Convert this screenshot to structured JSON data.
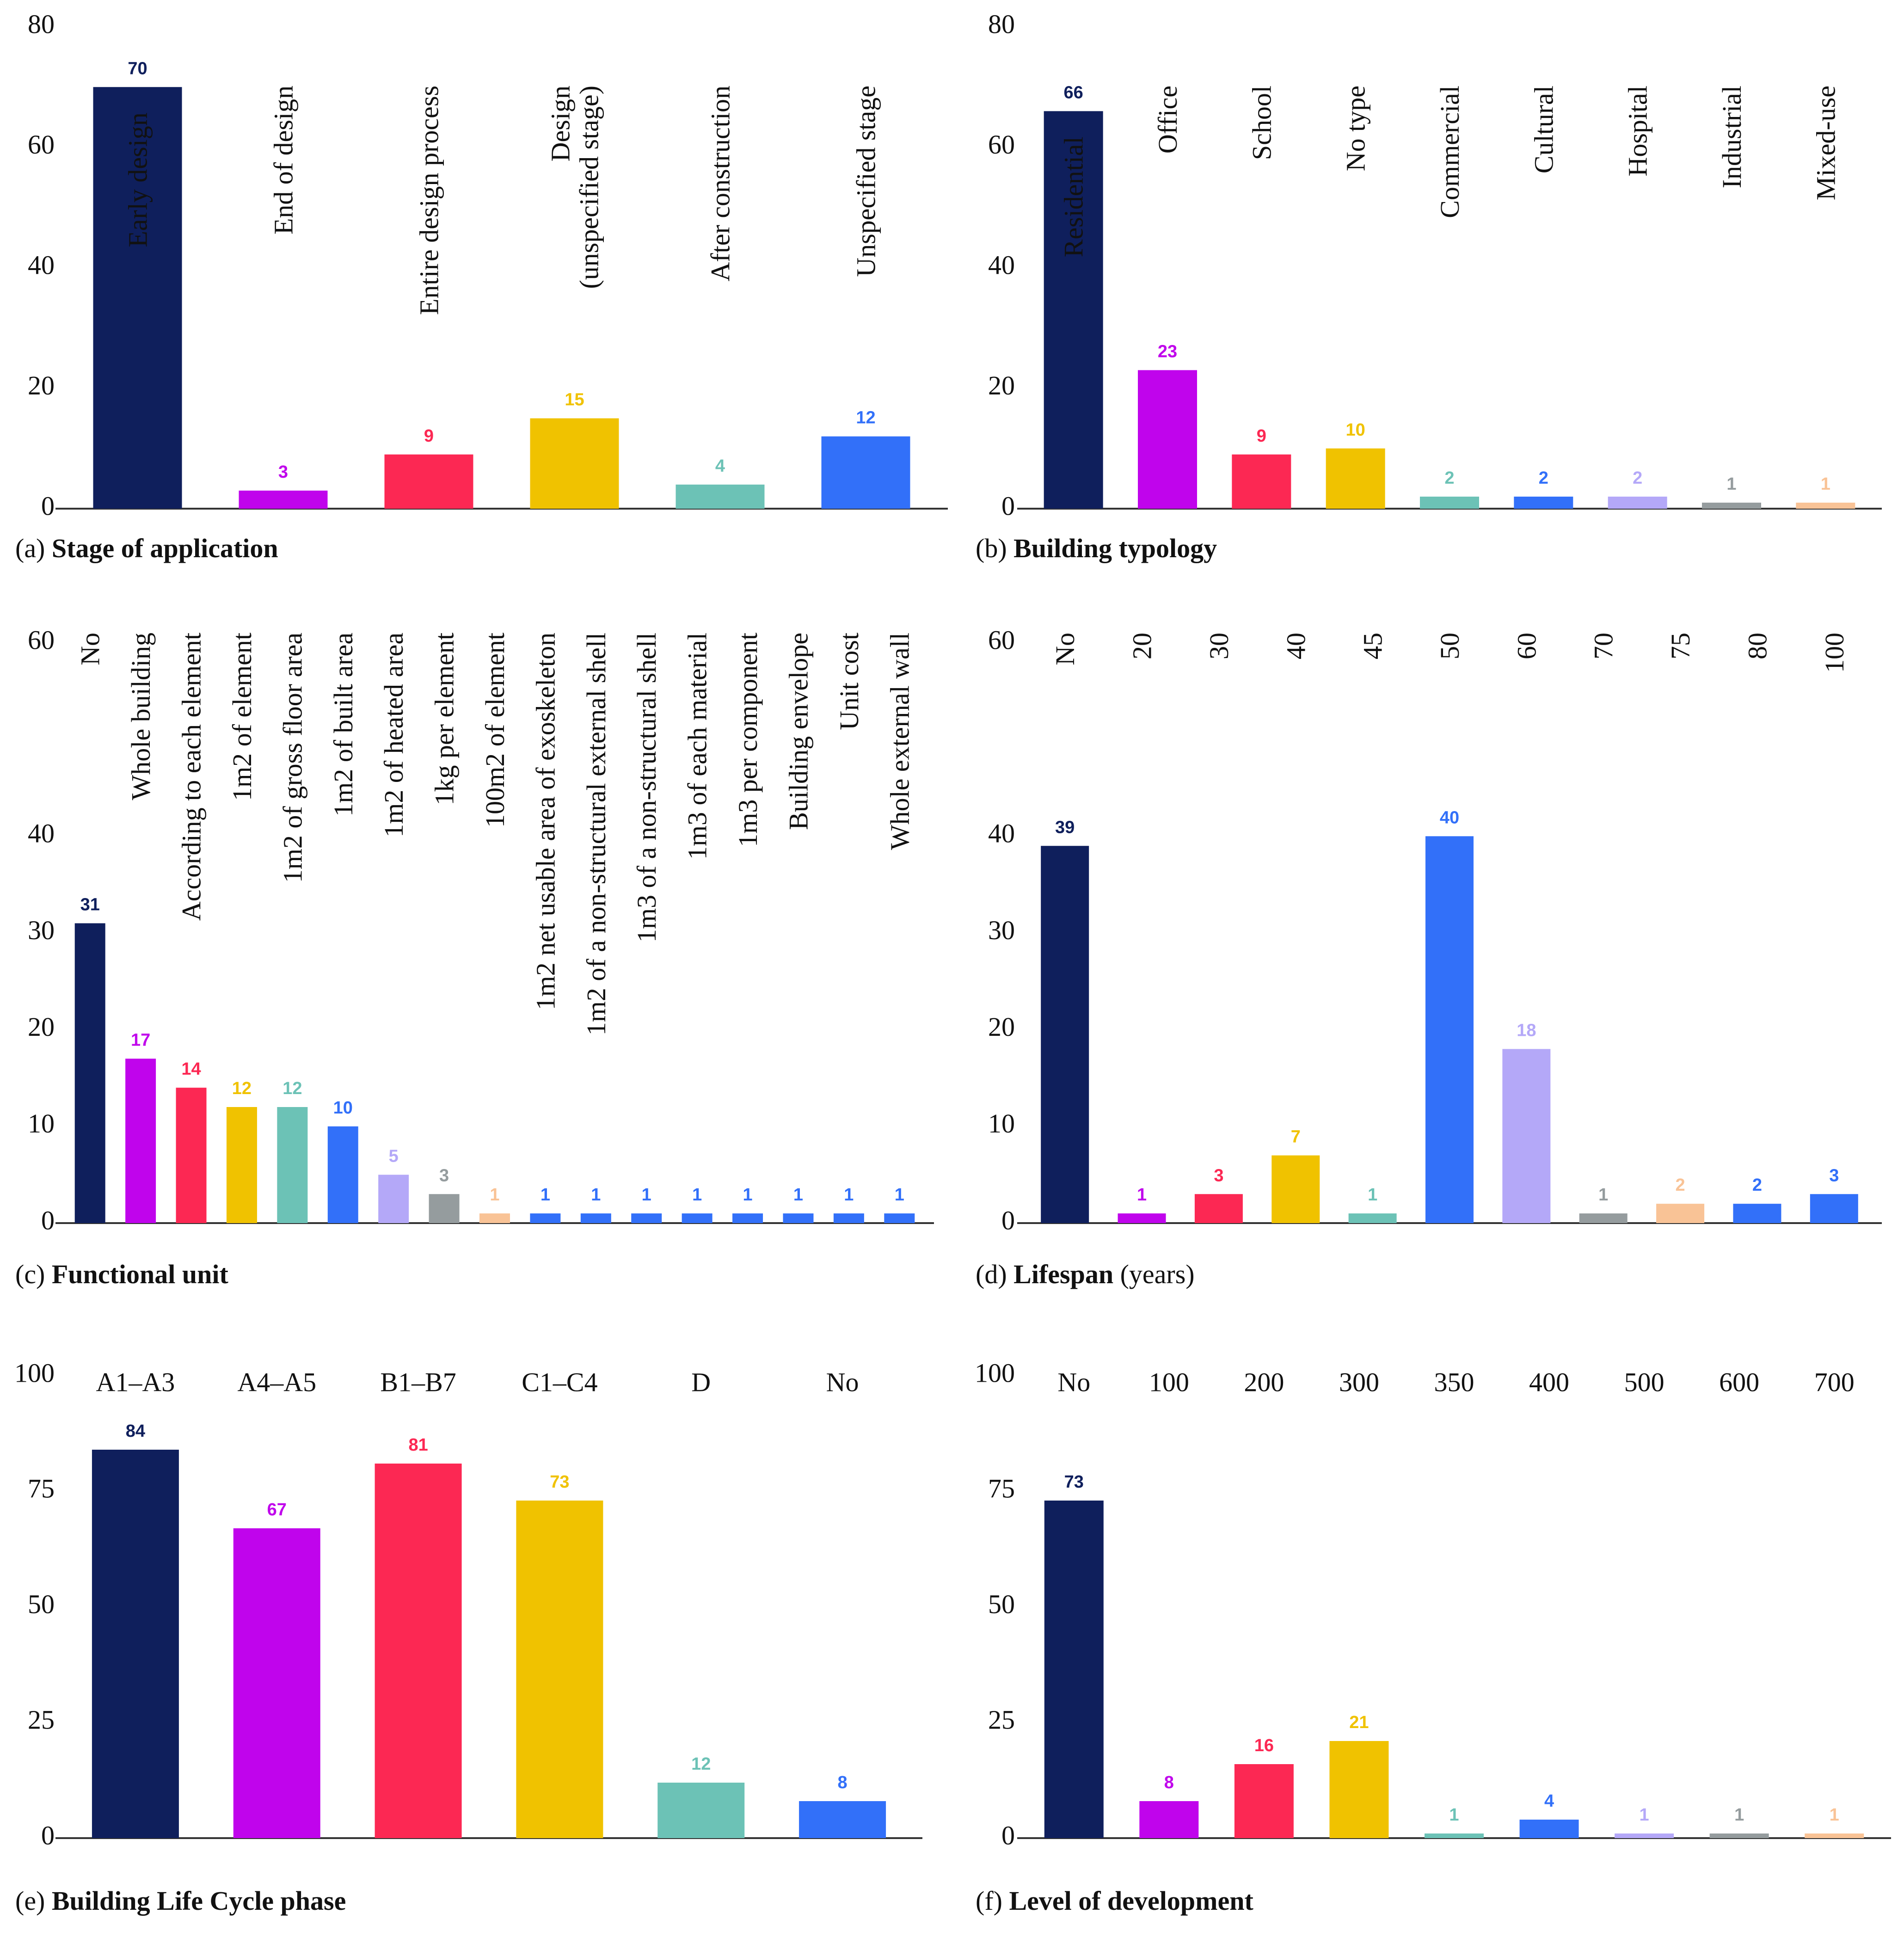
{
  "colors": {
    "navy": "#0f1f5c",
    "magenta": "#c004ec",
    "red": "#fc2853",
    "yellow": "#f0c200",
    "teal": "#6cc2b6",
    "blue": "#3270f9",
    "lavender": "#b4a8f8",
    "gray": "#959c9e",
    "peach": "#f9c396"
  },
  "chart_data": [
    {
      "id": "a",
      "type": "bar",
      "caption_prefix": "(a)",
      "title": "Stage of application",
      "title_suffix": "",
      "ylim": [
        0,
        80
      ],
      "yticks": [
        0,
        20,
        40,
        60,
        80
      ],
      "categories": [
        "Early design",
        "End of design",
        "Entire design process",
        "Design (unspecified stage)",
        "After construction",
        "Unspecified stage"
      ],
      "category_lines": [
        [
          "Early design"
        ],
        [
          "End of design"
        ],
        [
          "Entire design process"
        ],
        [
          "Design",
          "(unspecified stage)"
        ],
        [
          "After construction"
        ],
        [
          "Unspecified stage"
        ]
      ],
      "label_style": "rotated",
      "values": [
        70,
        3,
        9,
        15,
        4,
        12
      ],
      "bar_colors": [
        "#0f1f5c",
        "#c004ec",
        "#fc2853",
        "#f0c200",
        "#6cc2b6",
        "#3270f9"
      ]
    },
    {
      "id": "b",
      "type": "bar",
      "caption_prefix": "(b)",
      "title": "Building typology",
      "title_suffix": "",
      "ylim": [
        0,
        80
      ],
      "yticks": [
        0,
        20,
        40,
        60,
        80
      ],
      "categories": [
        "Residential",
        "Office",
        "School",
        "No type",
        "Commercial",
        "Cultural",
        "Hospital",
        "Industrial",
        "Mixed-use"
      ],
      "category_lines": [
        [
          "Residential"
        ],
        [
          "Office"
        ],
        [
          "School"
        ],
        [
          "No type"
        ],
        [
          "Commercial"
        ],
        [
          "Cultural"
        ],
        [
          "Hospital"
        ],
        [
          "Industrial"
        ],
        [
          "Mixed-use"
        ]
      ],
      "label_style": "rotated",
      "values": [
        66,
        23,
        9,
        10,
        2,
        2,
        2,
        1,
        1
      ],
      "bar_colors": [
        "#0f1f5c",
        "#c004ec",
        "#fc2853",
        "#f0c200",
        "#6cc2b6",
        "#3270f9",
        "#b4a8f8",
        "#959c9e",
        "#f9c396"
      ]
    },
    {
      "id": "c",
      "type": "bar",
      "caption_prefix": "(c)",
      "title": "Functional unit",
      "title_suffix": "",
      "ylim": [
        0,
        60
      ],
      "yticks": [
        0,
        10,
        20,
        30,
        40,
        60
      ],
      "categories": [
        "No",
        "Whole building",
        "According to each element",
        "1m2 of element",
        "1m2 of gross floor area",
        "1m2 of built area",
        "1m2 of heated area",
        "1kg per element",
        "100m2 of element",
        "1m2 net usable area of exoskeleton",
        "1m2 of a non-structural external shell",
        "1m3 of a non-structural shell",
        "1m3 of each material",
        "1m3 per component",
        "Building envelope",
        "Unit cost",
        "Whole external wall"
      ],
      "category_lines": [
        [
          "No"
        ],
        [
          "Whole building"
        ],
        [
          "According to each element"
        ],
        [
          "1m2 of element"
        ],
        [
          "1m2 of gross floor area"
        ],
        [
          "1m2 of built area"
        ],
        [
          "1m2 of heated area"
        ],
        [
          "1kg per element"
        ],
        [
          "100m2 of element"
        ],
        [
          "1m2 net usable area of exoskeleton"
        ],
        [
          "1m2 of a non-structural external shell"
        ],
        [
          "1m3 of a non-structural shell"
        ],
        [
          "1m3 of each material"
        ],
        [
          "1m3 per component"
        ],
        [
          "Building envelope"
        ],
        [
          "Unit cost"
        ],
        [
          "Whole external wall"
        ]
      ],
      "label_style": "rotated",
      "values": [
        31,
        17,
        14,
        12,
        12,
        10,
        5,
        3,
        1,
        1,
        1,
        1,
        1,
        1,
        1,
        1,
        1
      ],
      "bar_colors": [
        "#0f1f5c",
        "#c004ec",
        "#fc2853",
        "#f0c200",
        "#6cc2b6",
        "#3270f9",
        "#b4a8f8",
        "#959c9e",
        "#f9c396",
        "#3270f9",
        "#3270f9",
        "#3270f9",
        "#3270f9",
        "#3270f9",
        "#3270f9",
        "#3270f9",
        "#3270f9"
      ]
    },
    {
      "id": "d",
      "type": "bar",
      "caption_prefix": "(d)",
      "title": "Lifespan",
      "title_suffix": "(years)",
      "ylim": [
        0,
        60
      ],
      "yticks": [
        0,
        10,
        20,
        30,
        40,
        60
      ],
      "categories": [
        "No",
        "20",
        "30",
        "40",
        "45",
        "50",
        "60",
        "70",
        "75",
        "80",
        "100"
      ],
      "category_lines": [
        [
          "No"
        ],
        [
          "20"
        ],
        [
          "30"
        ],
        [
          "40"
        ],
        [
          "45"
        ],
        [
          "50"
        ],
        [
          "60"
        ],
        [
          "70"
        ],
        [
          "75"
        ],
        [
          "80"
        ],
        [
          "100"
        ]
      ],
      "label_style": "rotated",
      "values": [
        39,
        1,
        3,
        7,
        1,
        40,
        18,
        1,
        2,
        2,
        3
      ],
      "bar_colors": [
        "#0f1f5c",
        "#c004ec",
        "#fc2853",
        "#f0c200",
        "#6cc2b6",
        "#3270f9",
        "#b4a8f8",
        "#959c9e",
        "#f9c396",
        "#3270f9",
        "#3270f9"
      ]
    },
    {
      "id": "e",
      "type": "bar",
      "caption_prefix": "(e)",
      "title": "Building Life Cycle phase",
      "title_suffix": "",
      "ylim": [
        0,
        100
      ],
      "yticks": [
        0,
        25,
        50,
        75,
        100
      ],
      "categories": [
        "A1–A3",
        "A4–A5",
        "B1–B7",
        "C1–C4",
        "D",
        "No"
      ],
      "category_lines": [
        [
          "A1–A3"
        ],
        [
          "A4–A5"
        ],
        [
          "B1–B7"
        ],
        [
          "C1–C4"
        ],
        [
          "D"
        ],
        [
          "No"
        ]
      ],
      "label_style": "horizontal",
      "values": [
        84,
        67,
        81,
        73,
        12,
        8
      ],
      "bar_colors": [
        "#0f1f5c",
        "#c004ec",
        "#fc2853",
        "#f0c200",
        "#6cc2b6",
        "#3270f9"
      ]
    },
    {
      "id": "f",
      "type": "bar",
      "caption_prefix": "(f)",
      "title": "Level of development",
      "title_suffix": "",
      "ylim": [
        0,
        100
      ],
      "yticks": [
        0,
        25,
        50,
        75,
        100
      ],
      "categories": [
        "No",
        "100",
        "200",
        "300",
        "350",
        "400",
        "500",
        "600",
        "700"
      ],
      "category_lines": [
        [
          "No"
        ],
        [
          "100"
        ],
        [
          "200"
        ],
        [
          "300"
        ],
        [
          "350"
        ],
        [
          "400"
        ],
        [
          "500"
        ],
        [
          "600"
        ],
        [
          "700"
        ]
      ],
      "label_style": "horizontal",
      "values": [
        73,
        8,
        16,
        21,
        1,
        4,
        1,
        1,
        1
      ],
      "bar_colors": [
        "#0f1f5c",
        "#c004ec",
        "#fc2853",
        "#f0c200",
        "#6cc2b6",
        "#3270f9",
        "#b4a8f8",
        "#959c9e",
        "#f9c396"
      ]
    }
  ]
}
